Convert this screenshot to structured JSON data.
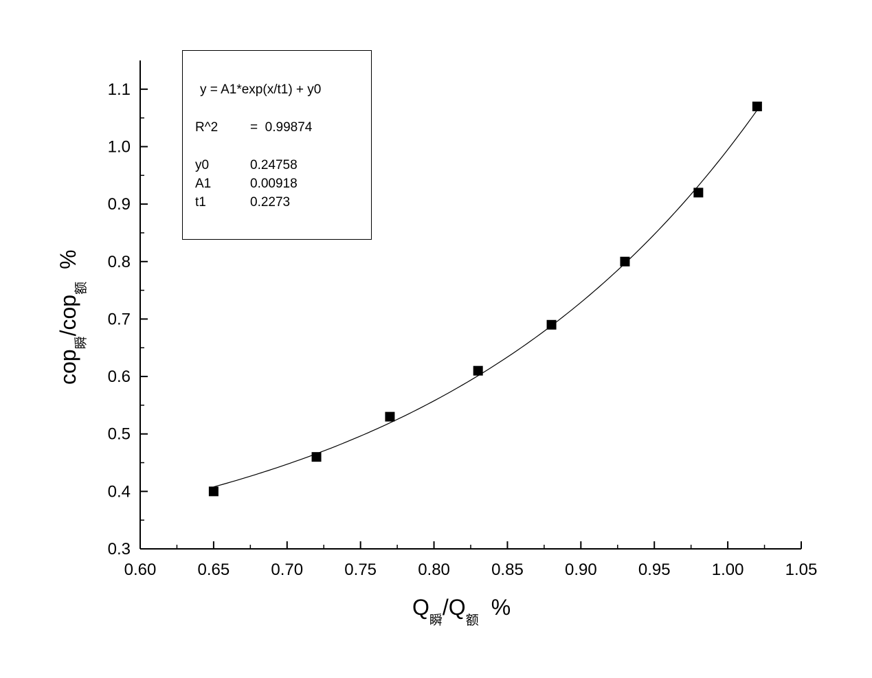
{
  "chart_data": {
    "type": "scatter",
    "x": [
      0.65,
      0.72,
      0.77,
      0.83,
      0.88,
      0.93,
      0.98,
      1.02
    ],
    "y": [
      0.4,
      0.46,
      0.53,
      0.61,
      0.69,
      0.8,
      0.92,
      1.07
    ],
    "xlim": [
      0.6,
      1.05
    ],
    "ylim": [
      0.3,
      1.15
    ],
    "xticks": [
      "0.60",
      "0.65",
      "0.70",
      "0.75",
      "0.80",
      "0.85",
      "0.90",
      "0.95",
      "1.00",
      "1.05"
    ],
    "yticks": [
      "0.3",
      "0.4",
      "0.5",
      "0.6",
      "0.7",
      "0.8",
      "0.9",
      "1.0",
      "1.1"
    ],
    "xlabel": {
      "main": "Q",
      "sub1": "瞬",
      "mid": "/Q",
      "sub2": "额",
      "unit": "%"
    },
    "ylabel": {
      "main": "cop",
      "sub1": "瞬",
      "mid": "/cop",
      "sub2": "额",
      "unit": "%"
    },
    "fit": {
      "equation": "y = A1*exp(x/t1) + y0",
      "r2_label": "R^2",
      "r2_value": "=  0.99874",
      "params": [
        {
          "name": "y0",
          "value": "0.24758"
        },
        {
          "name": "A1",
          "value": "0.00918"
        },
        {
          "name": "t1",
          "value": "0.2273"
        }
      ]
    },
    "marker_color": "#000000",
    "line_color": "#000000"
  }
}
